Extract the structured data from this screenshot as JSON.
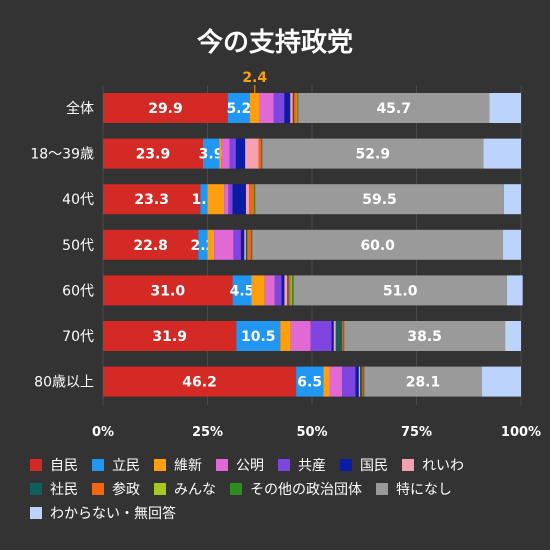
{
  "chart_data": {
    "type": "bar",
    "orientation": "horizontal",
    "stacked": true,
    "title": "今の支持政党",
    "xlim": [
      0,
      100
    ],
    "x_ticks": [
      "0%",
      "25%",
      "50%",
      "75%",
      "100%"
    ],
    "grid": true,
    "legend_position": "bottom",
    "categories": [
      "全体",
      "18〜39歳",
      "40代",
      "50代",
      "60代",
      "70代",
      "80歳以上"
    ],
    "series": [
      {
        "name": "自民",
        "color": "#d42a25",
        "values": [
          29.9,
          23.9,
          23.3,
          22.8,
          31.0,
          31.9,
          46.2
        ],
        "show_labels": true
      },
      {
        "name": "立民",
        "color": "#2196f3",
        "values": [
          5.2,
          3.9,
          1.7,
          2.2,
          4.5,
          10.5,
          6.5
        ],
        "show_labels": true
      },
      {
        "name": "維新",
        "color": "#ff9f0d",
        "values": [
          2.4,
          0.5,
          4.0,
          1.6,
          3.2,
          2.5,
          1.5
        ]
      },
      {
        "name": "公明",
        "color": "#e069d6",
        "values": [
          3.3,
          2.0,
          1.0,
          4.6,
          2.4,
          4.8,
          3.0
        ]
      },
      {
        "name": "共産",
        "color": "#7f45e0",
        "values": [
          2.6,
          1.5,
          1.0,
          1.8,
          1.6,
          5.0,
          3.2
        ]
      },
      {
        "name": "国民",
        "color": "#0a1ba5",
        "values": [
          1.4,
          2.2,
          3.2,
          0.8,
          0.7,
          0.5,
          0.8
        ]
      },
      {
        "name": "れいわ",
        "color": "#f4a1b0",
        "values": [
          0.6,
          3.2,
          0.8,
          0.4,
          0.7,
          0.5,
          0.3
        ]
      },
      {
        "name": "社民",
        "color": "#0f5f5f",
        "values": [
          0.3,
          0.0,
          0.0,
          0.3,
          0.3,
          1.5,
          0.5
        ]
      },
      {
        "name": "参政",
        "color": "#f2660f",
        "values": [
          0.6,
          0.6,
          1.2,
          0.9,
          0.5,
          0.3,
          0.2
        ]
      },
      {
        "name": "みんな",
        "color": "#a8c81b",
        "values": [
          0.2,
          0.0,
          0.0,
          0.0,
          0.3,
          0.0,
          0.0
        ]
      },
      {
        "name": "その他の政治団体",
        "color": "#2e8b22",
        "values": [
          0.2,
          0.3,
          0.2,
          0.3,
          0.4,
          0.2,
          0.3
        ]
      },
      {
        "name": "特になし",
        "color": "#9a9a9a",
        "values": [
          45.7,
          52.9,
          59.5,
          60.0,
          51.0,
          38.5,
          28.1
        ],
        "show_labels": true
      },
      {
        "name": "わからない・無回答",
        "color": "#bcd3fb",
        "values": [
          7.6,
          9.0,
          4.1,
          4.3,
          3.8,
          3.8,
          9.4
        ]
      }
    ],
    "callouts": [
      {
        "category_index": 0,
        "series": "維新",
        "label": "2.4"
      }
    ]
  }
}
